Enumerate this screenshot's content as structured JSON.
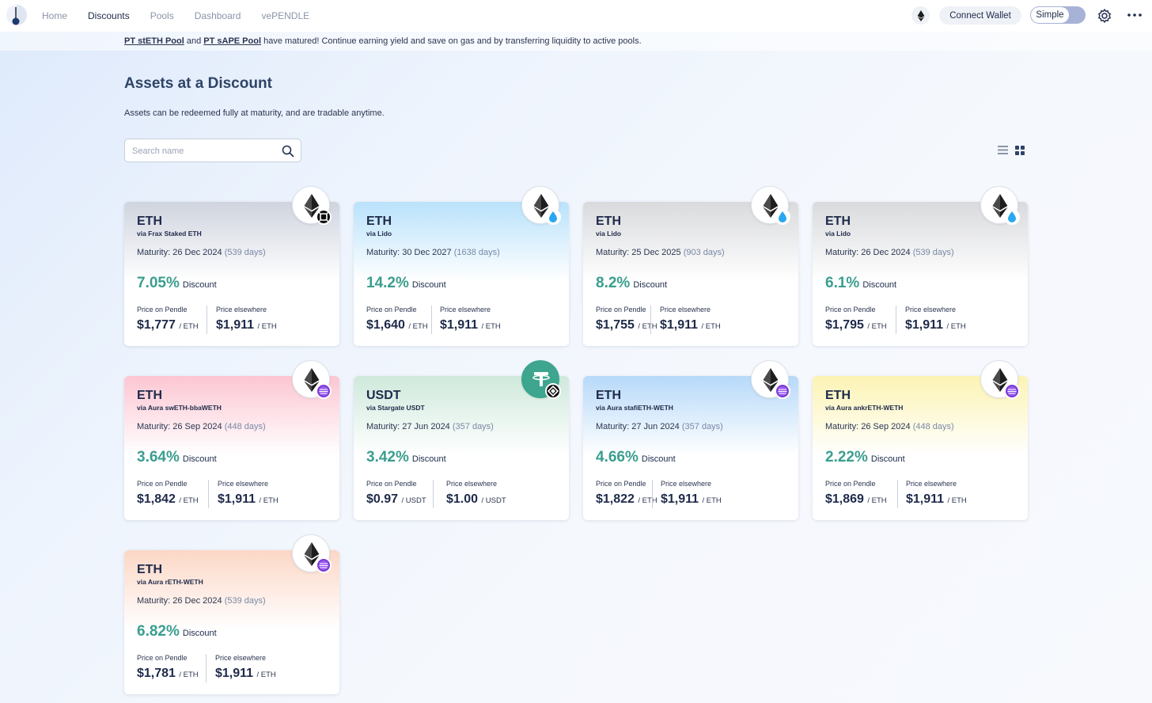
{
  "nav": {
    "links": [
      "Home",
      "Discounts",
      "Pools",
      "Dashboard",
      "vePENDLE"
    ],
    "active": "Discounts",
    "connect_wallet": "Connect Wallet",
    "mode_label": "Simple"
  },
  "banner": {
    "pool1": "PT stETH Pool",
    "and": "and",
    "pool2": "PT sAPE Pool",
    "message": "have matured! Continue earning yield and save on gas and by transferring liquidity to active pools."
  },
  "page": {
    "title": "Assets at a Discount",
    "subtitle": "Assets can be redeemed fully at maturity, and are tradable anytime.",
    "search_placeholder": "Search name"
  },
  "labels": {
    "maturity": "Maturity:",
    "discount": "Discount",
    "price_on_pendle": "Price on Pendle",
    "price_elsewhere": "Price elsewhere"
  },
  "colors": {
    "accent_green": "#3a9e8e",
    "frax_gray": "#cfd4de",
    "lido_blue": "#b9e2fb",
    "gray": "#d9dadd",
    "aura_pink": "#fcc6d2",
    "stargate_green": "#cfe9dc",
    "aura_blue": "#b7d9f9",
    "aura_yellow": "#fcf3b3",
    "aura_peach": "#fcd7c6"
  },
  "cards": [
    {
      "asset": "ETH",
      "via": "via Frax Staked ETH",
      "maturity": "26 Dec 2024",
      "days": "(539 days)",
      "discount": "7.05%",
      "pendle_price": "$1,777",
      "elsewhere_price": "$1,911",
      "unit": "/ ETH",
      "color": "#cfd4de",
      "icon": "eth-icon",
      "badge": "frax-badge-icon"
    },
    {
      "asset": "ETH",
      "via": "via Lido",
      "maturity": "30 Dec 2027",
      "days": "(1638 days)",
      "discount": "14.2%",
      "pendle_price": "$1,640",
      "elsewhere_price": "$1,911",
      "unit": "/ ETH",
      "color": "#b9e2fb",
      "icon": "eth-icon",
      "badge": "lido-badge-icon"
    },
    {
      "asset": "ETH",
      "via": "via Lido",
      "maturity": "25 Dec 2025",
      "days": "(903 days)",
      "discount": "8.2%",
      "pendle_price": "$1,755",
      "elsewhere_price": "$1,911",
      "unit": "/ ETH",
      "color": "#d9dadd",
      "icon": "eth-icon",
      "badge": "lido-badge-icon"
    },
    {
      "asset": "ETH",
      "via": "via Lido",
      "maturity": "26 Dec 2024",
      "days": "(539 days)",
      "discount": "6.1%",
      "pendle_price": "$1,795",
      "elsewhere_price": "$1,911",
      "unit": "/ ETH",
      "color": "#d9dadd",
      "icon": "eth-icon",
      "badge": "lido-badge-icon"
    },
    {
      "asset": "ETH",
      "via": "via Aura swETH-bbaWETH",
      "maturity": "26 Sep 2024",
      "days": "(448 days)",
      "discount": "3.64%",
      "pendle_price": "$1,842",
      "elsewhere_price": "$1,911",
      "unit": "/ ETH",
      "color": "#fcc6d2",
      "icon": "eth-icon",
      "badge": "aura-badge-icon"
    },
    {
      "asset": "USDT",
      "via": "via Stargate USDT",
      "maturity": "27 Jun 2024",
      "days": "(357 days)",
      "discount": "3.42%",
      "pendle_price": "$0.97",
      "elsewhere_price": "$1.00",
      "unit": "/ USDT",
      "color": "#cfe9dc",
      "icon": "usdt-icon",
      "badge": "stargate-badge-icon"
    },
    {
      "asset": "ETH",
      "via": "via Aura stafiETH-WETH",
      "maturity": "27 Jun 2024",
      "days": "(357 days)",
      "discount": "4.66%",
      "pendle_price": "$1,822",
      "elsewhere_price": "$1,911",
      "unit": "/ ETH",
      "color": "#b7d9f9",
      "icon": "eth-icon",
      "badge": "aura-badge-icon"
    },
    {
      "asset": "ETH",
      "via": "via Aura ankrETH-WETH",
      "maturity": "26 Sep 2024",
      "days": "(448 days)",
      "discount": "2.22%",
      "pendle_price": "$1,869",
      "elsewhere_price": "$1,911",
      "unit": "/ ETH",
      "color": "#fcf3b3",
      "icon": "eth-icon",
      "badge": "aura-badge-icon"
    },
    {
      "asset": "ETH",
      "via": "via Aura rETH-WETH",
      "maturity": "26 Dec 2024",
      "days": "(539 days)",
      "discount": "6.82%",
      "pendle_price": "$1,781",
      "elsewhere_price": "$1,911",
      "unit": "/ ETH",
      "color": "#fcd7c6",
      "icon": "eth-icon",
      "badge": "aura-badge-icon"
    }
  ]
}
